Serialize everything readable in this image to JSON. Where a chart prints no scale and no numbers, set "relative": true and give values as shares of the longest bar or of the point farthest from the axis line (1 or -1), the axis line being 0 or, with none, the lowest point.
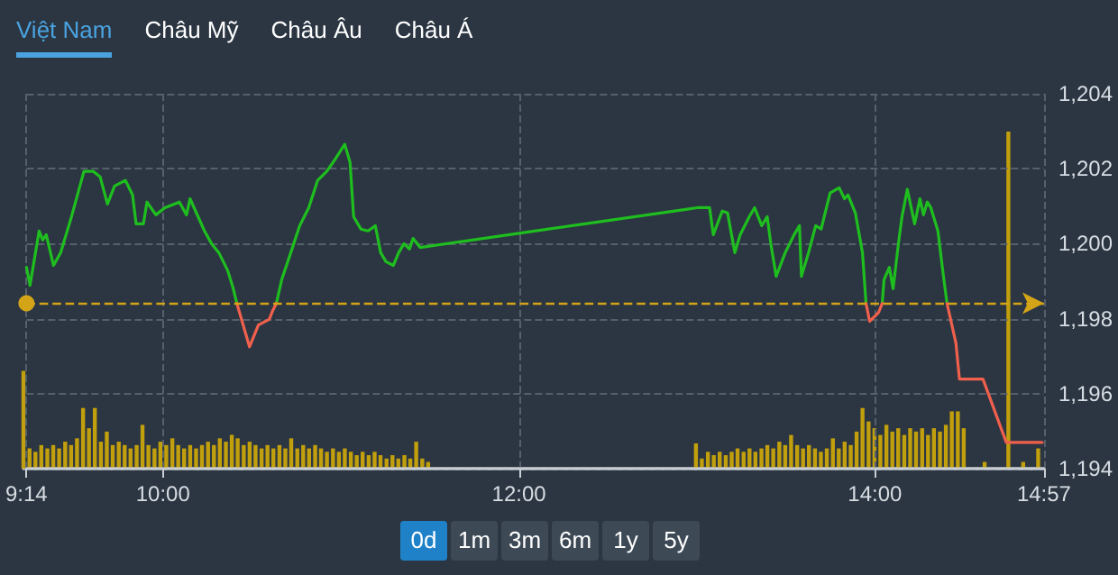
{
  "chart_data": [
    {
      "type": "line",
      "annotations": [
        "Việt Nam",
        "Châu Mỹ",
        "Châu Âu",
        "Châu Á",
        "0d",
        "1m",
        "3m",
        "6m",
        "1y",
        "5y"
      ],
      "xlim": [
        9.233,
        14.95
      ],
      "xticks": [
        {
          "value": 9.233,
          "label": "9:14"
        },
        {
          "value": 10,
          "label": "10:00"
        },
        {
          "value": 12,
          "label": "12:00"
        },
        {
          "value": 14,
          "label": "14:00"
        },
        {
          "value": 14.95,
          "label": "14:57"
        }
      ],
      "ylim": [
        1194,
        1204
      ],
      "yticks": [
        {
          "value": 1194,
          "label": "1,194"
        },
        {
          "value": 1196,
          "label": "1,196"
        },
        {
          "value": 1198,
          "label": "1,198"
        },
        {
          "value": 1200,
          "label": "1,200"
        },
        {
          "value": 1202,
          "label": "1,202"
        },
        {
          "value": 1204,
          "label": "1,204"
        }
      ],
      "grid": true,
      "marker": "none",
      "line_style": "solid",
      "ref_lines": [
        {
          "axis": "y",
          "value": 1198.41,
          "color": "#d4a418",
          "line_style": "dashed"
        }
      ],
      "series": [
        {
          "type": "line",
          "color": "#1fbe1f",
          "x": [
            9.233,
            9.253,
            9.304,
            9.324,
            9.344,
            9.385,
            9.425,
            9.486,
            9.556,
            9.607,
            9.647,
            9.688,
            9.728,
            9.789,
            9.829,
            9.849,
            9.89,
            9.91,
            9.96,
            10.011,
            10.092,
            10.132,
            10.152,
            10.233,
            10.273,
            10.314,
            10.364,
            10.395,
            10.415,
            10.5,
            10.637,
            10.667,
            10.718,
            10.768,
            10.819,
            10.869,
            10.92,
            10.97,
            11.021,
            11.051,
            11.071,
            11.112,
            11.152,
            11.193,
            11.223,
            11.253,
            11.294,
            11.324,
            11.354,
            11.385,
            11.405,
            11.445,
            13.001,
            13.071,
            13.092,
            13.142,
            13.172,
            13.213,
            13.243,
            13.294,
            13.324,
            13.364,
            13.395,
            13.415,
            13.445,
            13.496,
            13.546,
            13.576,
            13.587,
            13.627,
            13.667,
            13.698,
            13.748,
            13.799,
            13.829,
            13.849,
            13.89,
            13.93,
            13.95,
            14.0,
            14.041,
            14.051,
            14.081,
            14.102,
            14.132,
            14.152,
            14.182,
            14.223,
            14.253,
            14.273,
            14.294,
            14.314,
            14.354,
            14.385,
            14.405
          ],
          "values": [
            1199.37,
            1198.89,
            1200.34,
            1200.1,
            1200.24,
            1199.42,
            1199.76,
            1200.72,
            1201.93,
            1201.93,
            1201.78,
            1201.06,
            1201.54,
            1201.69,
            1201.3,
            1200.53,
            1200.53,
            1201.11,
            1200.77,
            1200.96,
            1201.11,
            1200.77,
            1201.2,
            1200.34,
            1200.0,
            1199.76,
            1199.28,
            1198.8,
            1198.41,
            null,
            1198.41,
            1199.04,
            1199.76,
            1200.48,
            1200.96,
            1201.69,
            1201.93,
            1202.27,
            1202.65,
            1202.17,
            1200.72,
            1200.39,
            1200.34,
            1200.48,
            1199.76,
            1199.52,
            1199.42,
            1199.76,
            1200.0,
            1199.86,
            1200.14,
            1199.9,
            1200.96,
            1200.96,
            1200.24,
            1200.87,
            1200.82,
            1199.76,
            1200.24,
            1200.72,
            1200.96,
            1200.48,
            1200.72,
            1200.0,
            1199.13,
            1199.76,
            1200.24,
            1200.48,
            1199.13,
            1199.76,
            1200.48,
            1200.39,
            1201.35,
            1201.49,
            1201.2,
            1201.3,
            1200.82,
            1199.76,
            1198.41,
            null,
            1198.41,
            1199.04,
            1199.37,
            1198.8,
            1200.0,
            1200.72,
            1201.45,
            1200.53,
            1201.2,
            1200.77,
            1201.11,
            1200.96,
            1200.34,
            1199.13,
            1198.41
          ]
        },
        {
          "type": "line",
          "color": "#f0604c",
          "x": [
            10.415,
            10.486,
            10.536,
            10.597,
            10.617,
            10.637,
            12.0,
            13.95,
            13.97,
            14.001,
            14.021,
            14.041,
            14.2,
            14.405,
            14.455,
            14.475,
            14.607,
            14.738,
            14.94
          ],
          "values": [
            1198.41,
            1197.25,
            1197.83,
            1197.98,
            1198.22,
            1198.41,
            null,
            1198.41,
            1197.93,
            1198.07,
            1198.17,
            1198.41,
            null,
            1198.41,
            1197.35,
            1196.39,
            1196.39,
            1194.7,
            1194.7
          ]
        }
      ]
    },
    {
      "type": "bar",
      "relative": true,
      "color": "#c29f0c",
      "xlim": [
        9.233,
        14.95
      ],
      "x": [
        9.233,
        9.267,
        9.3,
        9.333,
        9.367,
        9.4,
        9.433,
        9.467,
        9.5,
        9.533,
        9.567,
        9.6,
        9.633,
        9.667,
        9.7,
        9.733,
        9.767,
        9.8,
        9.833,
        9.867,
        9.9,
        9.933,
        9.967,
        10.0,
        10.033,
        10.067,
        10.1,
        10.133,
        10.167,
        10.2,
        10.233,
        10.267,
        10.3,
        10.333,
        10.367,
        10.4,
        10.433,
        10.467,
        10.5,
        10.533,
        10.567,
        10.6,
        10.633,
        10.667,
        10.7,
        10.733,
        10.767,
        10.8,
        10.833,
        10.867,
        10.9,
        10.933,
        10.967,
        11.0,
        11.033,
        11.067,
        11.1,
        11.133,
        11.167,
        11.2,
        11.233,
        11.267,
        11.3,
        11.333,
        11.367,
        11.4,
        11.433,
        11.467,
        11.5,
        13.0,
        13.033,
        13.067,
        13.1,
        13.133,
        13.167,
        13.2,
        13.233,
        13.267,
        13.3,
        13.333,
        13.367,
        13.4,
        13.433,
        13.467,
        13.5,
        13.533,
        13.567,
        13.6,
        13.633,
        13.667,
        13.7,
        13.733,
        13.767,
        13.8,
        13.833,
        13.867,
        13.9,
        13.933,
        13.967,
        14.0,
        14.033,
        14.067,
        14.1,
        14.133,
        14.167,
        14.2,
        14.233,
        14.267,
        14.3,
        14.333,
        14.367,
        14.4,
        14.433,
        14.467,
        14.5,
        14.617,
        14.75,
        14.833,
        14.917
      ],
      "values": [
        0.29,
        0.06,
        0.05,
        0.07,
        0.06,
        0.07,
        0.06,
        0.08,
        0.07,
        0.09,
        0.18,
        0.12,
        0.18,
        0.08,
        0.11,
        0.07,
        0.08,
        0.07,
        0.06,
        0.07,
        0.13,
        0.07,
        0.06,
        0.08,
        0.07,
        0.09,
        0.07,
        0.06,
        0.07,
        0.06,
        0.07,
        0.08,
        0.07,
        0.09,
        0.08,
        0.1,
        0.09,
        0.07,
        0.08,
        0.07,
        0.06,
        0.07,
        0.06,
        0.07,
        0.06,
        0.09,
        0.06,
        0.07,
        0.06,
        0.07,
        0.06,
        0.05,
        0.06,
        0.05,
        0.06,
        0.05,
        0.04,
        0.05,
        0.04,
        0.05,
        0.04,
        0.03,
        0.04,
        0.03,
        0.04,
        0.03,
        0.08,
        0.03,
        0.02,
        0.075,
        0.03,
        0.05,
        0.04,
        0.05,
        0.04,
        0.05,
        0.06,
        0.05,
        0.06,
        0.05,
        0.06,
        0.07,
        0.06,
        0.08,
        0.07,
        0.1,
        0.07,
        0.06,
        0.07,
        0.06,
        0.05,
        0.06,
        0.09,
        0.06,
        0.08,
        0.07,
        0.11,
        0.18,
        0.14,
        0.12,
        0.1,
        0.13,
        0.11,
        0.12,
        0.1,
        0.12,
        0.11,
        0.12,
        0.1,
        0.12,
        0.11,
        0.13,
        0.17,
        0.17,
        0.12,
        0.02,
        1.0,
        0.02,
        0.06
      ]
    }
  ]
}
